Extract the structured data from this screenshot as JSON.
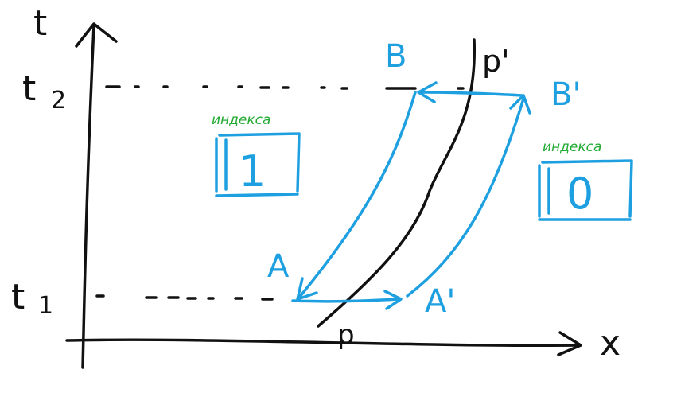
{
  "labels": {
    "t_axis": "t",
    "x_axis": "x",
    "t1": "t",
    "t1_sub": "1",
    "t2": "t",
    "t2_sub": "2",
    "point_a": "A",
    "point_b": "B",
    "point_a_prime": "A'",
    "point_b_prime": "B'",
    "curve_p": "p",
    "curve_p_prime": "p'"
  },
  "regions": {
    "left": {
      "caption": "индекса",
      "index": "1"
    },
    "right": {
      "caption": "индекса",
      "index": "0"
    }
  },
  "colors": {
    "ink": "#111111",
    "blue": "#1ea0e0",
    "green": "#22aa33"
  }
}
